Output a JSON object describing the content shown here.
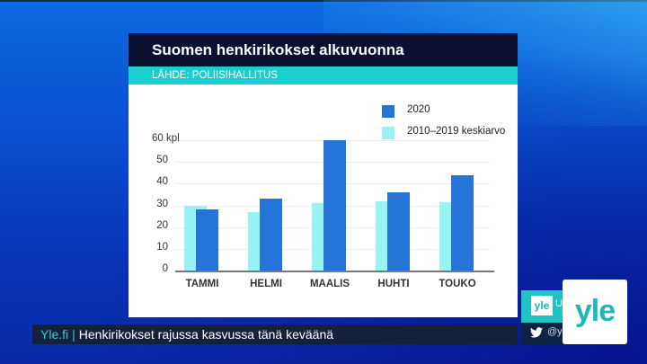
{
  "card": {
    "title": "Suomen henkirikokset alkuvuonna",
    "source": "LÄHDE: POLIISIHALLITUS"
  },
  "colors": {
    "series_2020": "#2575d8",
    "series_avg": "#98f3f5",
    "title_bg": "#0b1030",
    "source_bg": "#1ccfcf"
  },
  "chart_data": {
    "type": "bar",
    "title": "Suomen henkirikokset alkuvuonna",
    "subtitle": "LÄHDE: POLIISIHALLITUS",
    "xlabel": "",
    "ylabel": "kpl",
    "ylim": [
      0,
      60
    ],
    "yticks": [
      0,
      10,
      20,
      30,
      40,
      50,
      60
    ],
    "ytick_labels": [
      "0",
      "10",
      "20",
      "30",
      "40",
      "50",
      "60 kpl"
    ],
    "grid": true,
    "legend_position": "top-right",
    "categories": [
      "TAMMI",
      "HELMI",
      "MAALIS",
      "HUHTI",
      "TOUKO"
    ],
    "series": [
      {
        "name": "2010–2019 keskiarvo",
        "values": [
          30,
          27,
          31,
          32,
          31.5
        ]
      },
      {
        "name": "2020",
        "values": [
          28,
          33,
          60,
          36,
          44
        ]
      }
    ]
  },
  "legend": {
    "items": [
      {
        "label": "2020"
      },
      {
        "label": "2010–2019 keskiarvo"
      }
    ]
  },
  "ticker": {
    "source": "Yle.fi",
    "separator": "|",
    "headline": "Henkirikokset rajussa kasvussa tänä keväänä"
  },
  "side": {
    "logo_small": "yle",
    "fragment": "U",
    "handle": "@y"
  },
  "logo": {
    "text": "yle"
  }
}
